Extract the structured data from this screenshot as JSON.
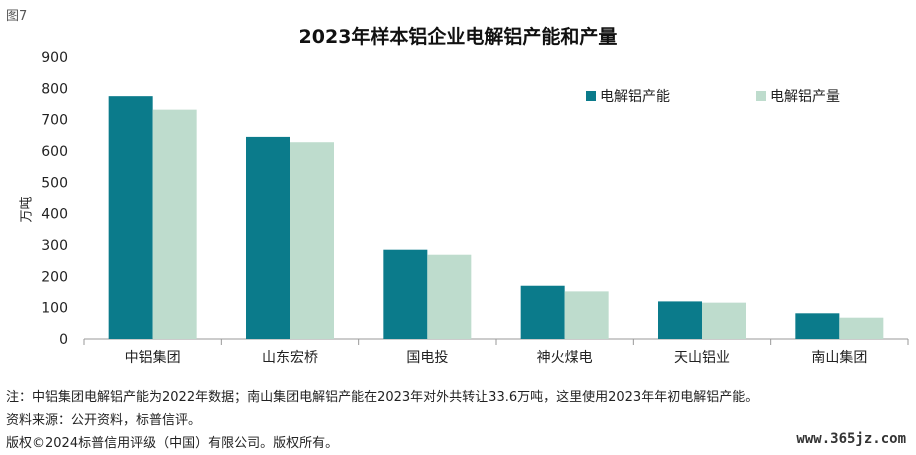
{
  "figure_label": "图7",
  "chart_data": {
    "type": "bar",
    "title": "2023年样本铝企业电解铝产能和产量",
    "ylabel": "万吨",
    "xlabel": "",
    "ylim": [
      0,
      900
    ],
    "yticks": [
      0,
      100,
      200,
      300,
      400,
      500,
      600,
      700,
      800,
      900
    ],
    "categories": [
      "中铝集团",
      "山东宏桥",
      "国电投",
      "神火煤电",
      "天山铝业",
      "南山集团"
    ],
    "series": [
      {
        "name": "电解铝产能",
        "color": "#0b7b8b",
        "values": [
          775,
          645,
          285,
          170,
          120,
          82
        ]
      },
      {
        "name": "电解铝产量",
        "color": "#bedccd",
        "values": [
          732,
          628,
          269,
          152,
          116,
          68
        ]
      }
    ],
    "legend_position": "top-right",
    "grid": false
  },
  "notes": {
    "note1": "注：中铝集团电解铝产能为2022年数据；南山集团电解铝产能在2023年对外共转让33.6万吨，这里使用2023年年初电解铝产能。",
    "note2": "资料来源：公开资料，标普信评。",
    "note3": "版权©2024标普信用评级（中国）有限公司。版权所有。"
  },
  "watermark": "www.365jz.com"
}
